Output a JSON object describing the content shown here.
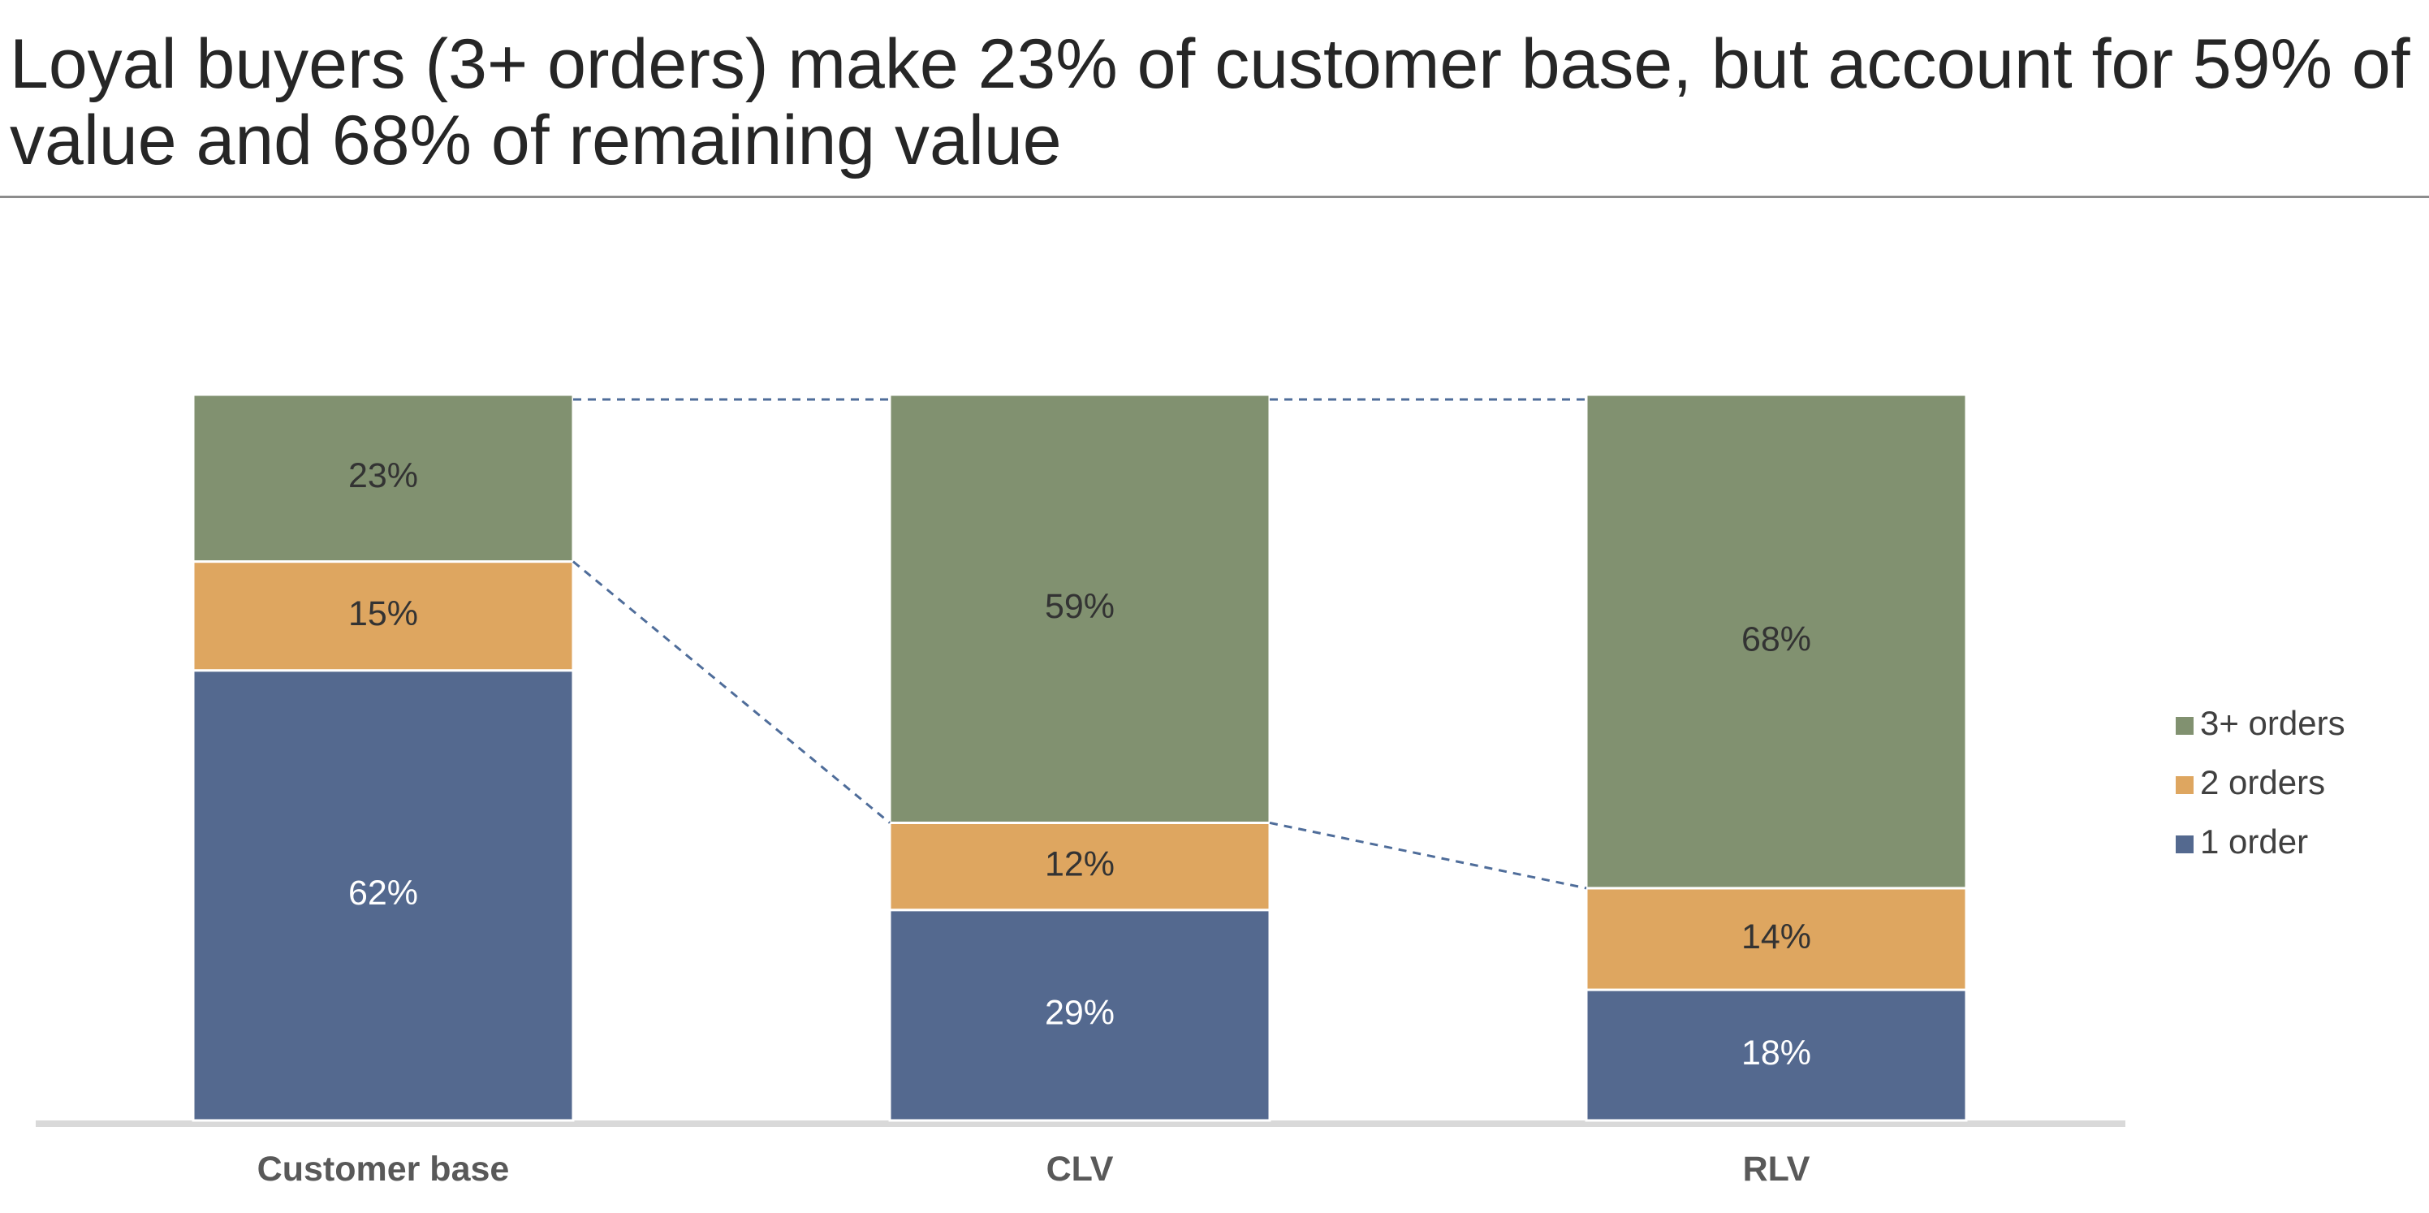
{
  "page": {
    "title": "Loyal buyers (3+ orders) make 23% of customer base, but account for 59% of value and 68% of remaining value"
  },
  "chart_data": {
    "type": "bar",
    "stacked": true,
    "normalized_100": true,
    "categories": [
      "Customer base",
      "CLV",
      "RLV"
    ],
    "series": [
      {
        "name": "1 order",
        "values": [
          62,
          29,
          18
        ],
        "color": "#54698f",
        "label_color": "#ffffff"
      },
      {
        "name": "2 orders",
        "values": [
          15,
          12,
          14
        ],
        "color": "#dea660",
        "label_color": "#333333"
      },
      {
        "name": "3+ orders",
        "values": [
          23,
          59,
          68
        ],
        "color": "#819170",
        "label_color": "#333333"
      }
    ],
    "data_labels": [
      [
        "62%",
        "29%",
        "18%"
      ],
      [
        "15%",
        "12%",
        "14%"
      ],
      [
        "23%",
        "59%",
        "68%"
      ]
    ],
    "legend": {
      "position": "right",
      "order": [
        "3+ orders",
        "2 orders",
        "1 order"
      ]
    },
    "connector_lines": "dashed lines linking top of bars and top of 3+ orders segment",
    "ylim": [
      0,
      100
    ],
    "grid": false,
    "xlabel": "",
    "ylabel": ""
  }
}
